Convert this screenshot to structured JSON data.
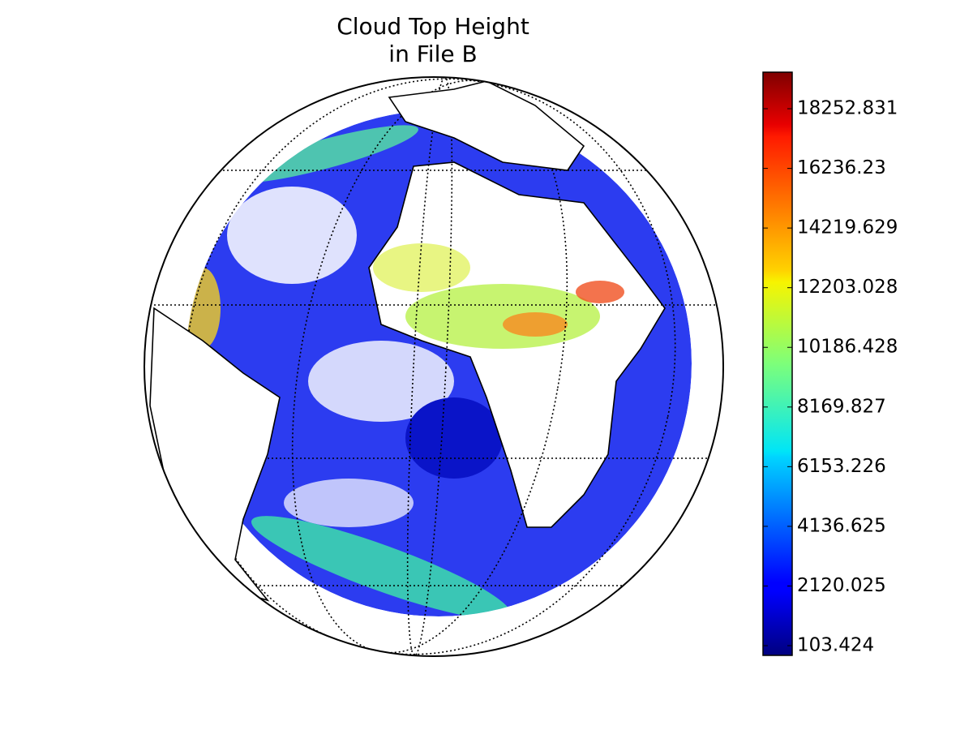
{
  "chart_data": {
    "type": "map",
    "title": [
      "Cloud Top Height",
      "in File B"
    ],
    "colormap": "jet",
    "clim": [
      -225,
      19487
    ],
    "cticks": [
      103.424,
      2120.025,
      4136.625,
      6153.226,
      8169.827,
      10186.428,
      12203.028,
      14219.629,
      16236.23,
      18252.831
    ]
  }
}
